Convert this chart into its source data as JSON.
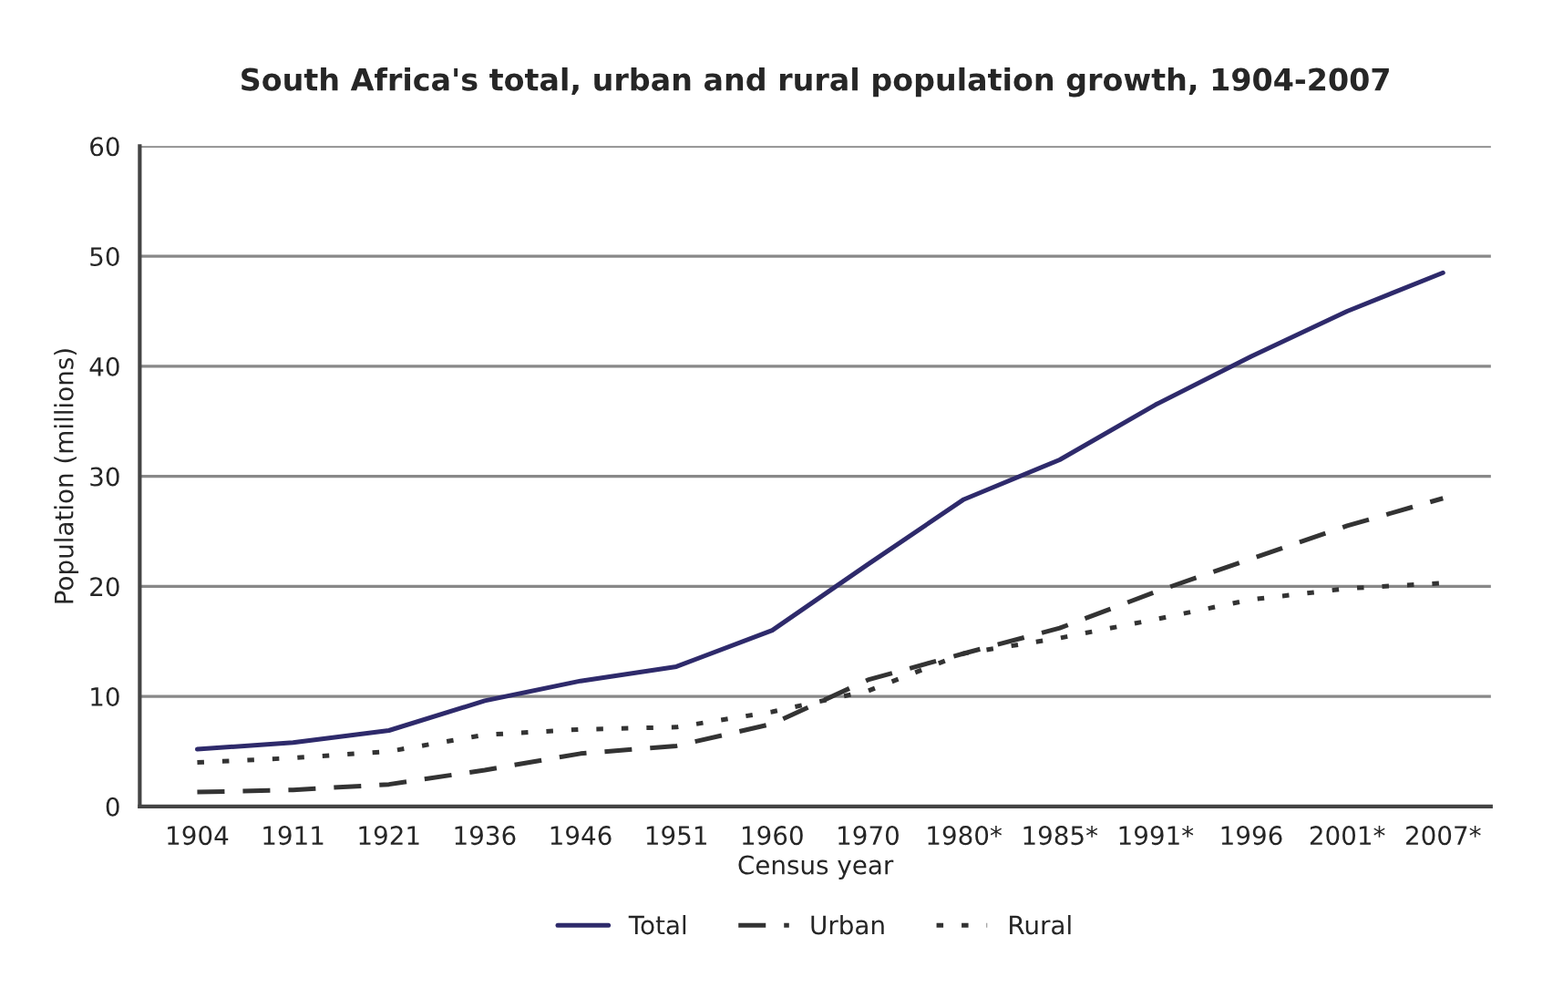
{
  "chart_data": {
    "type": "line",
    "title": "South Africa's total, urban and rural population growth, 1904-2007",
    "xlabel": "Census year",
    "ylabel": "Population (millions)",
    "categories": [
      "1904",
      "1911",
      "1921",
      "1936",
      "1946",
      "1951",
      "1960",
      "1970",
      "1980*",
      "1985*",
      "1991*",
      "1996",
      "2001*",
      "2007*"
    ],
    "series": [
      {
        "name": "Total",
        "color": "#2e2a6b",
        "line_style": "solid",
        "values": [
          5.2,
          5.8,
          6.9,
          9.6,
          11.4,
          12.7,
          16.0,
          22.0,
          27.9,
          31.5,
          36.5,
          40.9,
          45.0,
          48.5
        ]
      },
      {
        "name": "Urban",
        "color": "#333333",
        "line_style": "dashed",
        "values": [
          1.3,
          1.5,
          2.0,
          3.3,
          4.8,
          5.5,
          7.5,
          11.5,
          13.9,
          16.2,
          19.5,
          22.5,
          25.5,
          28.0
        ]
      },
      {
        "name": "Rural",
        "color": "#333333",
        "line_style": "dotted",
        "values": [
          4.0,
          4.4,
          5.0,
          6.5,
          7.0,
          7.2,
          8.6,
          10.5,
          13.9,
          15.3,
          17.0,
          18.8,
          19.8,
          20.3
        ]
      }
    ],
    "ylim": [
      0,
      60
    ],
    "yticks": [
      0,
      10,
      20,
      30,
      40,
      50,
      60
    ],
    "grid": "y",
    "legend": "bottom"
  }
}
